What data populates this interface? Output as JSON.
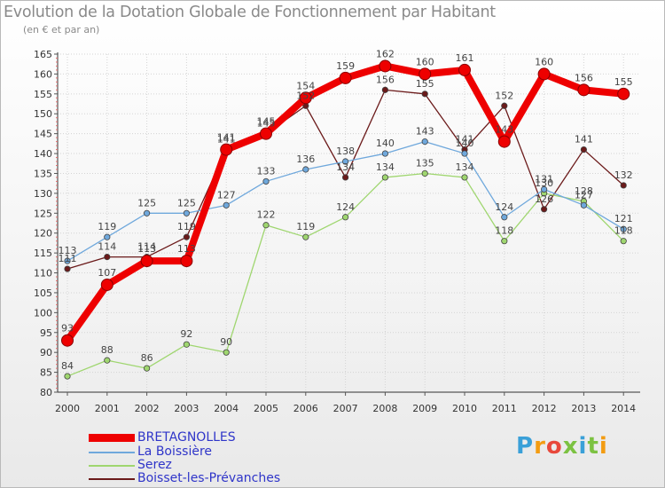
{
  "title": "Evolution de la Dotation Globale de Fonctionnement par Habitant",
  "subtitle": "(en € et par an)",
  "logo_text": "Proxiti",
  "chart_data": {
    "type": "line",
    "title": "Evolution de la Dotation Globale de Fonctionnement par Habitant",
    "subtitle": "(en € et par an)",
    "xlabel": "",
    "ylabel": "",
    "ylim": [
      80,
      165
    ],
    "ytick_step": 5,
    "grid": true,
    "legend_position": "bottom-left",
    "x": [
      2000,
      2001,
      2002,
      2003,
      2004,
      2005,
      2006,
      2007,
      2008,
      2009,
      2010,
      2011,
      2012,
      2013,
      2014
    ],
    "series": [
      {
        "name": "Boisset-les-Prévanches",
        "color": "#6b1a1a",
        "values": [
          111,
          114,
          114,
          119,
          141,
          145,
          152,
          134,
          156,
          155,
          141,
          152,
          126,
          141,
          132
        ]
      },
      {
        "name": "Serez",
        "color": "#9fd66f",
        "values": [
          84,
          88,
          86,
          92,
          90,
          122,
          119,
          124,
          134,
          135,
          134,
          118,
          130,
          128,
          118
        ]
      },
      {
        "name": "La Boissière",
        "color": "#6fa8dc",
        "values": [
          113,
          119,
          125,
          125,
          127,
          133,
          136,
          138,
          140,
          143,
          140,
          124,
          131,
          127,
          121
        ]
      },
      {
        "name": "BRETAGNOLLES",
        "color": "#ee0000",
        "values": [
          93,
          107,
          113,
          113,
          141,
          145,
          154,
          159,
          162,
          160,
          161,
          143,
          160,
          156,
          155
        ]
      }
    ]
  },
  "legend": [
    {
      "name": "BRETAGNOLLES",
      "color": "#ee0000"
    },
    {
      "name": "La Boissière",
      "color": "#6fa8dc"
    },
    {
      "name": "Serez",
      "color": "#9fd66f"
    },
    {
      "name": "Boisset-les-Prévanches",
      "color": "#6b1a1a"
    }
  ]
}
